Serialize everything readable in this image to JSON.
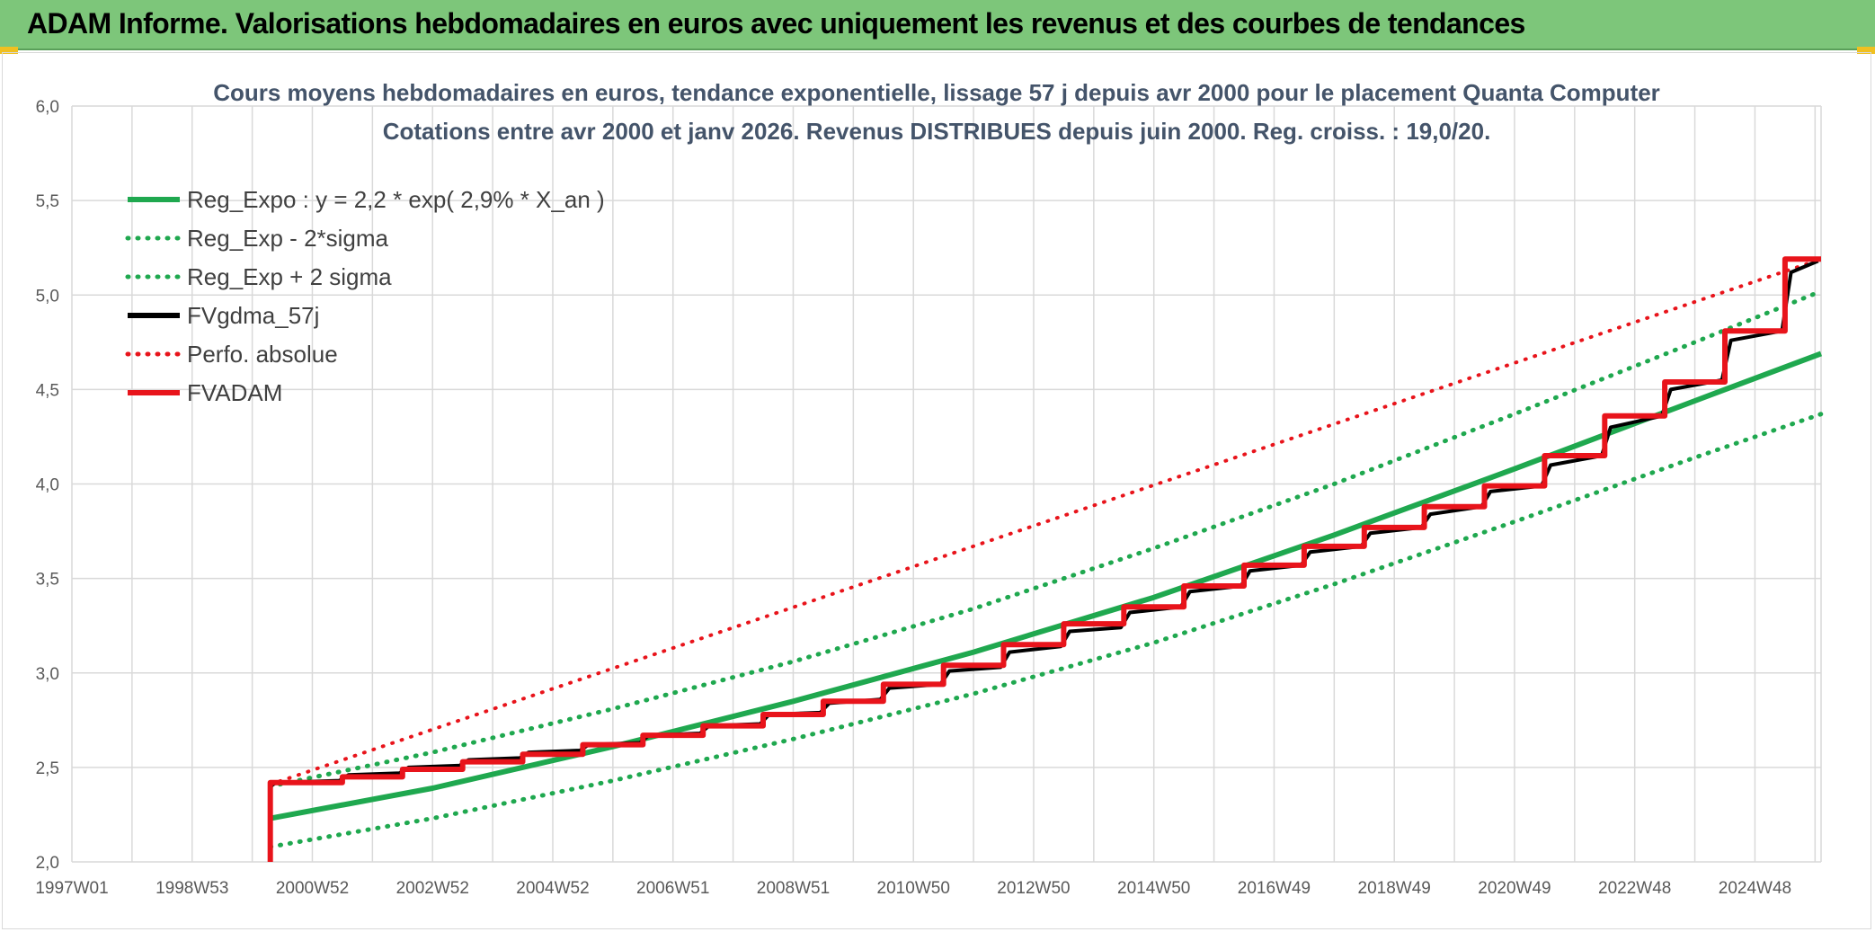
{
  "banner": {
    "title": "ADAM Informe. Valorisations hebdomadaires en euros avec uniquement les revenus et des courbes de tendances"
  },
  "colors": {
    "banner_bg": "#7dc67a",
    "reg_green": "#1fa84f",
    "fvgdma_black": "#000000",
    "red": "#e8141b",
    "grid": "#d9d9d9"
  },
  "chart_data": {
    "type": "line",
    "title": "Cours moyens hebdomadaires en euros, tendance exponentielle, lissage 57 j depuis avr 2000 pour le placement Quanta Computer",
    "subtitle": "Cotations entre avr 2000 et janv 2026. Revenus DISTRIBUES depuis juin 2000. Reg. croiss. : 19,0/20.",
    "xlabel": "",
    "ylabel": "",
    "x_range": [
      1997.0,
      2026.1
    ],
    "x_tick_labels": [
      "1997W01",
      "1998W53",
      "2000W52",
      "2002W52",
      "2004W52",
      "2006W51",
      "2008W51",
      "2010W50",
      "2012W50",
      "2014W50",
      "2016W49",
      "2018W49",
      "2020W49",
      "2022W48",
      "2024W48"
    ],
    "x_tick_years": [
      1997,
      1999,
      2001,
      2003,
      2005,
      2007,
      2009,
      2011,
      2013,
      2015,
      2017,
      2019,
      2021,
      2023,
      2025
    ],
    "ylim": [
      2.0,
      6.0
    ],
    "y_ticks": [
      "2,0",
      "2,5",
      "3,0",
      "3,5",
      "4,0",
      "4,5",
      "5,0",
      "5,5",
      "6,0"
    ],
    "grid": true,
    "legend_position": "top-left",
    "series": [
      {
        "name": "Reg_Expo : y = 2,2 * exp( 2,9% *  X_an )",
        "style": "solid",
        "color": "#1fa84f",
        "x": [
          2000.3,
          2003.0,
          2006.0,
          2009.0,
          2012.0,
          2015.0,
          2018.0,
          2021.0,
          2024.0,
          2026.1
        ],
        "y": [
          2.23,
          2.39,
          2.61,
          2.85,
          3.11,
          3.4,
          3.73,
          4.08,
          4.44,
          4.69
        ]
      },
      {
        "name": "Reg_Exp - 2*sigma",
        "style": "dotted",
        "color": "#1fa84f",
        "x": [
          2000.3,
          2003.0,
          2006.0,
          2009.0,
          2012.0,
          2015.0,
          2018.0,
          2021.0,
          2024.0,
          2026.1
        ],
        "y": [
          2.08,
          2.23,
          2.43,
          2.65,
          2.89,
          3.16,
          3.47,
          3.8,
          4.14,
          4.37
        ]
      },
      {
        "name": "Reg_Exp + 2 sigma",
        "style": "dotted",
        "color": "#1fa84f",
        "x": [
          2000.3,
          2003.0,
          2006.0,
          2009.0,
          2012.0,
          2015.0,
          2018.0,
          2021.0,
          2024.0,
          2026.1
        ],
        "y": [
          2.4,
          2.58,
          2.81,
          3.06,
          3.34,
          3.66,
          4.0,
          4.37,
          4.75,
          5.02
        ]
      },
      {
        "name": "FVgdma_57j",
        "style": "solid",
        "color": "#000000",
        "x": [
          2000.3,
          2000.4,
          2001.45,
          2001.6,
          2002.45,
          2002.6,
          2003.45,
          2003.6,
          2004.45,
          2004.6,
          2005.45,
          2005.6,
          2006.45,
          2006.6,
          2007.45,
          2007.6,
          2008.45,
          2008.6,
          2009.45,
          2009.6,
          2010.45,
          2010.6,
          2011.45,
          2011.6,
          2012.45,
          2012.6,
          2013.45,
          2013.6,
          2014.45,
          2014.6,
          2015.45,
          2015.6,
          2016.45,
          2016.6,
          2017.45,
          2017.6,
          2018.45,
          2018.6,
          2019.45,
          2019.6,
          2020.45,
          2020.6,
          2021.45,
          2021.6,
          2022.45,
          2022.6,
          2023.45,
          2023.6,
          2024.45,
          2024.6,
          2025.45,
          2025.6,
          2026.05
        ],
        "y": [
          2.4,
          2.42,
          2.43,
          2.46,
          2.47,
          2.5,
          2.51,
          2.54,
          2.55,
          2.58,
          2.59,
          2.62,
          2.63,
          2.67,
          2.68,
          2.72,
          2.73,
          2.78,
          2.79,
          2.84,
          2.86,
          2.92,
          2.94,
          3.01,
          3.03,
          3.11,
          3.14,
          3.22,
          3.24,
          3.32,
          3.35,
          3.43,
          3.46,
          3.54,
          3.57,
          3.64,
          3.67,
          3.74,
          3.77,
          3.84,
          3.88,
          3.96,
          3.99,
          4.1,
          4.15,
          4.3,
          4.36,
          4.5,
          4.55,
          4.76,
          4.81,
          5.12,
          5.18
        ]
      },
      {
        "name": "Perfo. absolue",
        "style": "dotted",
        "color": "#e8141b",
        "x": [
          2000.3,
          2026.1
        ],
        "y": [
          2.41,
          5.19
        ]
      },
      {
        "name": "FVADAM",
        "style": "step",
        "color": "#e8141b",
        "x": [
          2000.3,
          2000.3,
          2001.5,
          2002.5,
          2003.5,
          2004.5,
          2005.5,
          2006.5,
          2007.5,
          2008.5,
          2009.5,
          2010.5,
          2011.5,
          2012.5,
          2013.5,
          2014.5,
          2015.5,
          2016.5,
          2017.5,
          2018.5,
          2019.5,
          2020.5,
          2021.5,
          2022.5,
          2023.5,
          2024.5,
          2025.5,
          2026.1
        ],
        "y": [
          2.0,
          2.42,
          2.45,
          2.49,
          2.53,
          2.57,
          2.62,
          2.67,
          2.72,
          2.78,
          2.85,
          2.94,
          3.04,
          3.15,
          3.26,
          3.35,
          3.46,
          3.57,
          3.67,
          3.77,
          3.88,
          3.99,
          4.15,
          4.36,
          4.54,
          4.81,
          5.19,
          5.19
        ]
      }
    ]
  }
}
